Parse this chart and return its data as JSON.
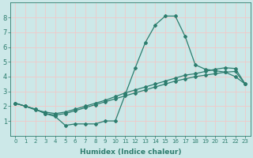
{
  "xlabel": "Humidex (Indice chaleur)",
  "bg_color": "#cce8e8",
  "grid_color": "#f0c8c8",
  "line_color": "#2d7d6e",
  "xlim": [
    -0.5,
    23.5
  ],
  "ylim": [
    0,
    9
  ],
  "xticks": [
    0,
    1,
    2,
    3,
    4,
    5,
    6,
    7,
    8,
    9,
    10,
    11,
    12,
    13,
    14,
    15,
    16,
    17,
    18,
    19,
    20,
    21,
    22,
    23
  ],
  "yticks": [
    1,
    2,
    3,
    4,
    5,
    6,
    7,
    8
  ],
  "line1_x": [
    0,
    1,
    2,
    3,
    4,
    5,
    6,
    7,
    8,
    9,
    10,
    11,
    12,
    13,
    14,
    15,
    16,
    17,
    18,
    19,
    20,
    21,
    22,
    23
  ],
  "line1_y": [
    2.2,
    2.0,
    1.8,
    1.5,
    1.3,
    0.7,
    0.8,
    0.8,
    0.8,
    1.0,
    1.0,
    2.8,
    4.6,
    6.3,
    7.5,
    8.1,
    8.1,
    6.7,
    4.8,
    4.5,
    4.4,
    4.3,
    4.0,
    3.5
  ],
  "line2_x": [
    0,
    1,
    2,
    3,
    4,
    5,
    6,
    7,
    8,
    9,
    10,
    11,
    12,
    13,
    14,
    15,
    16,
    17,
    18,
    19,
    20,
    21,
    22,
    23
  ],
  "line2_y": [
    2.2,
    2.0,
    1.8,
    1.5,
    1.4,
    1.5,
    1.7,
    1.9,
    2.1,
    2.3,
    2.5,
    2.7,
    2.9,
    3.1,
    3.3,
    3.5,
    3.7,
    3.85,
    4.0,
    4.1,
    4.2,
    4.3,
    4.35,
    3.5
  ],
  "line3_x": [
    0,
    1,
    2,
    3,
    4,
    5,
    6,
    7,
    8,
    9,
    10,
    11,
    12,
    13,
    14,
    15,
    16,
    17,
    18,
    19,
    20,
    21,
    22,
    23
  ],
  "line3_y": [
    2.2,
    2.0,
    1.75,
    1.6,
    1.5,
    1.6,
    1.8,
    2.0,
    2.2,
    2.4,
    2.65,
    2.9,
    3.1,
    3.3,
    3.5,
    3.7,
    3.9,
    4.1,
    4.2,
    4.35,
    4.5,
    4.6,
    4.55,
    3.5
  ]
}
